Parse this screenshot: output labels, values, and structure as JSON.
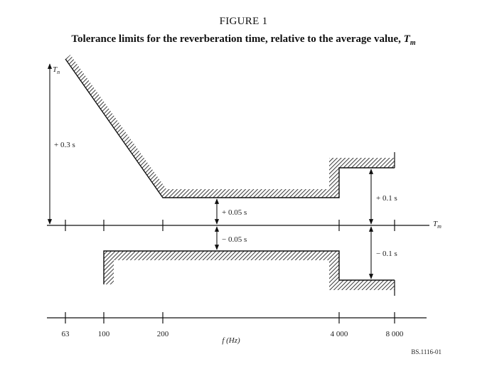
{
  "figure_label": "FIGURE 1",
  "title_text": "Tolerance limits for the reverberation time, relative to the average value,",
  "title_symbol": "T",
  "title_symbol_sub": "m",
  "y_axis_label": "T",
  "y_axis_label_sub": "n",
  "x_axis_symbol": "T",
  "x_axis_symbol_sub": "m",
  "freq_axis_label": "f (Hz)",
  "freq_ticks": [
    "63",
    "100",
    "200",
    "4 000",
    "8 000"
  ],
  "annotations": {
    "plus_03": "+ 0.3 s",
    "plus_005": "+ 0.05 s",
    "minus_005": "− 0.05 s",
    "plus_01": "+ 0.1 s",
    "minus_01": "− 0.1 s"
  },
  "figure_code": "BS.1116-01",
  "colors": {
    "line": "#111111",
    "hatch": "#222222"
  }
}
